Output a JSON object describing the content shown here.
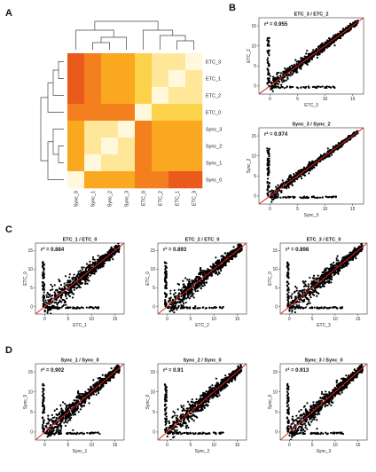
{
  "panel_labels": [
    "A",
    "B",
    "C",
    "D"
  ],
  "chart_data": [
    {
      "type": "heatmap",
      "panel": "A",
      "rows": [
        "ETC_3",
        "ETC_1",
        "ETC_2",
        "ETC_0",
        "Sync_3",
        "Sync_2",
        "Sync_1",
        "Sync_0"
      ],
      "columns": [
        "Sync_0",
        "Sync_1",
        "Sync_2",
        "Sync_3",
        "ETC_0",
        "ETC_2",
        "ETC_1",
        "ETC_3"
      ],
      "values": [
        [
          0.15,
          0.4,
          0.45,
          0.45,
          0.75,
          0.85,
          0.85,
          1.0
        ],
        [
          0.2,
          0.4,
          0.45,
          0.45,
          0.75,
          0.85,
          1.0,
          0.85
        ],
        [
          0.25,
          0.4,
          0.45,
          0.45,
          0.75,
          1.0,
          0.85,
          0.85
        ],
        [
          0.3,
          0.3,
          0.3,
          0.3,
          1.0,
          0.75,
          0.75,
          0.75
        ],
        [
          0.45,
          0.8,
          0.8,
          1.0,
          0.3,
          0.45,
          0.45,
          0.45
        ],
        [
          0.45,
          0.85,
          1.0,
          0.8,
          0.3,
          0.45,
          0.45,
          0.45
        ],
        [
          0.45,
          1.0,
          0.85,
          0.8,
          0.3,
          0.45,
          0.45,
          0.45
        ],
        [
          1.0,
          0.45,
          0.45,
          0.45,
          0.3,
          0.3,
          0.25,
          0.2
        ]
      ],
      "colormap": [
        "#fff8dc",
        "#ffe79a",
        "#fcd24a",
        "#f9a820",
        "#f47f1f",
        "#ea5a1d",
        "#dc3a18"
      ],
      "dendrograms": [
        "top",
        "left"
      ]
    },
    {
      "type": "scatter",
      "panel": "B",
      "title": "ETC_3 / ETC_2",
      "r2": "r² = 0.955",
      "xlabel": "ETC_3",
      "ylabel": "ETC_2",
      "xticks": [
        0,
        5,
        10,
        15
      ],
      "yticks": [
        0,
        5,
        10,
        15
      ],
      "xlim": [
        -2,
        17
      ],
      "ylim": [
        -2,
        17
      ],
      "spread": 0.9
    },
    {
      "type": "scatter",
      "panel": "B",
      "title": "Sync_3 / Sync_2",
      "r2": "r² = 0.974",
      "xlabel": "Sync_3",
      "ylabel": "Sync_2",
      "xticks": [
        0,
        5,
        10,
        15
      ],
      "yticks": [
        0,
        5,
        10,
        15
      ],
      "xlim": [
        -2,
        17
      ],
      "ylim": [
        -2,
        17
      ],
      "spread": 0.7
    },
    {
      "type": "scatter",
      "panel": "C",
      "title": "ETC_1 / ETC_0",
      "r2": "r² = 0.884",
      "xlabel": "ETC_1",
      "ylabel": "ETC_0",
      "xticks": [
        0,
        5,
        10,
        15
      ],
      "yticks": [
        0,
        5,
        10,
        15
      ],
      "xlim": [
        -2,
        17
      ],
      "ylim": [
        -2,
        17
      ],
      "spread": 1.8
    },
    {
      "type": "scatter",
      "panel": "C",
      "title": "ETC_2 / ETC_0",
      "r2": "r² = 0.893",
      "xlabel": "ETC_2",
      "ylabel": "ETC_0",
      "xticks": [
        0,
        5,
        10,
        15
      ],
      "yticks": [
        0,
        5,
        10,
        15
      ],
      "xlim": [
        -2,
        17
      ],
      "ylim": [
        -2,
        17
      ],
      "spread": 1.7
    },
    {
      "type": "scatter",
      "panel": "C",
      "title": "ETC_3 / ETC_0",
      "r2": "r² = 0.898",
      "xlabel": "ETC_3",
      "ylabel": "ETC_0",
      "xticks": [
        0,
        5,
        10,
        15
      ],
      "yticks": [
        0,
        5,
        10,
        15
      ],
      "xlim": [
        -2,
        17
      ],
      "ylim": [
        -2,
        17
      ],
      "spread": 1.6
    },
    {
      "type": "scatter",
      "panel": "D",
      "title": "Sync_1 / Sync_0",
      "r2": "r² = 0.902",
      "xlabel": "Sync_1",
      "ylabel": "Sync_0",
      "xticks": [
        0,
        5,
        10,
        15
      ],
      "yticks": [
        0,
        5,
        10,
        15
      ],
      "xlim": [
        -2,
        17
      ],
      "ylim": [
        -2,
        17
      ],
      "spread": 1.6
    },
    {
      "type": "scatter",
      "panel": "D",
      "title": "Sync_2 / Sync_0",
      "r2": "r² = 0.91",
      "xlabel": "Sync_2",
      "ylabel": "Sync_0",
      "xticks": [
        0,
        5,
        10,
        15
      ],
      "yticks": [
        0,
        5,
        10,
        15
      ],
      "xlim": [
        -2,
        17
      ],
      "ylim": [
        -2,
        17
      ],
      "spread": 1.5
    },
    {
      "type": "scatter",
      "panel": "D",
      "title": "Sync_3 / Sync_0",
      "r2": "r² = 0.913",
      "xlabel": "Sync_3",
      "ylabel": "Sync_0",
      "xticks": [
        0,
        5,
        10,
        15
      ],
      "yticks": [
        0,
        5,
        10,
        15
      ],
      "xlim": [
        -2,
        17
      ],
      "ylim": [
        -2,
        17
      ],
      "spread": 1.5
    }
  ],
  "colors": {
    "points": "#000000",
    "fit_line": "#e0231c",
    "axis": "#333333"
  }
}
